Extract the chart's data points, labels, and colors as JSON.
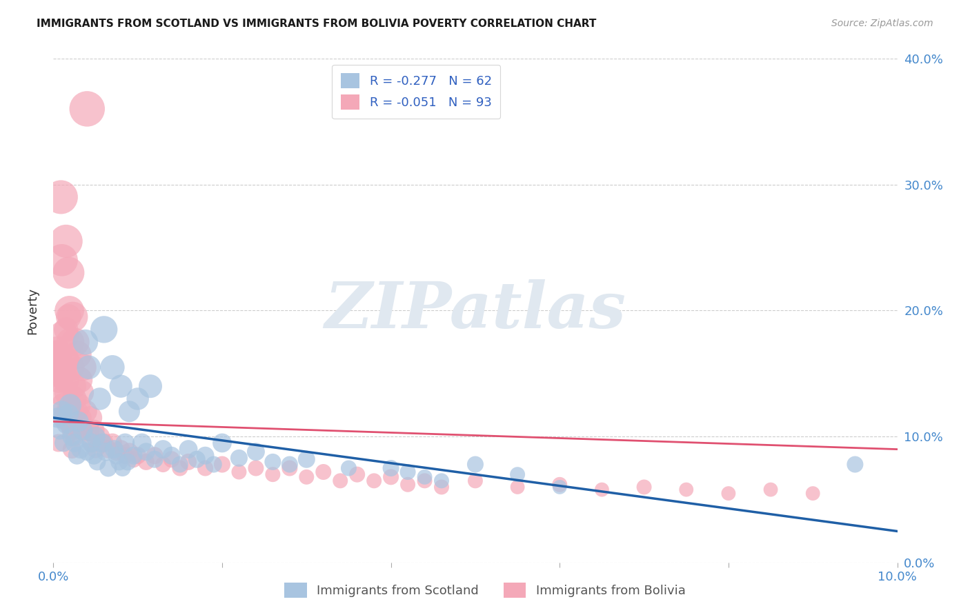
{
  "title": "IMMIGRANTS FROM SCOTLAND VS IMMIGRANTS FROM BOLIVIA POVERTY CORRELATION CHART",
  "source": "Source: ZipAtlas.com",
  "ylabel": "Poverty",
  "scotland_R": -0.277,
  "scotland_N": 62,
  "bolivia_R": -0.051,
  "bolivia_N": 93,
  "xlim": [
    0.0,
    0.1
  ],
  "ylim": [
    0.0,
    0.4
  ],
  "x_ticks": [
    0.0,
    0.02,
    0.04,
    0.06,
    0.08,
    0.1
  ],
  "y_ticks": [
    0.0,
    0.1,
    0.2,
    0.3,
    0.4
  ],
  "scotland_color": "#a8c4e0",
  "bolivia_color": "#f4a8b8",
  "scotland_line_color": "#1f5fa6",
  "bolivia_line_color": "#e05070",
  "legend_text_color": "#3060c0",
  "background_color": "#ffffff",
  "grid_color": "#cccccc",
  "watermark_text": "ZIPatlas",
  "scotland_x": [
    0.0005,
    0.0008,
    0.001,
    0.0012,
    0.0015,
    0.0018,
    0.002,
    0.0022,
    0.0025,
    0.0028,
    0.003,
    0.0032,
    0.0035,
    0.0038,
    0.004,
    0.0042,
    0.0045,
    0.0048,
    0.005,
    0.0052,
    0.0055,
    0.0058,
    0.006,
    0.0062,
    0.0065,
    0.007,
    0.0072,
    0.0075,
    0.0078,
    0.008,
    0.0082,
    0.0085,
    0.0088,
    0.009,
    0.0095,
    0.01,
    0.0105,
    0.011,
    0.0115,
    0.012,
    0.013,
    0.014,
    0.015,
    0.016,
    0.017,
    0.018,
    0.019,
    0.02,
    0.022,
    0.024,
    0.026,
    0.028,
    0.03,
    0.035,
    0.04,
    0.042,
    0.044,
    0.046,
    0.05,
    0.055,
    0.06,
    0.095
  ],
  "scotland_y": [
    0.115,
    0.105,
    0.12,
    0.095,
    0.11,
    0.118,
    0.125,
    0.1,
    0.095,
    0.085,
    0.112,
    0.09,
    0.105,
    0.175,
    0.088,
    0.155,
    0.095,
    0.085,
    0.1,
    0.08,
    0.13,
    0.095,
    0.185,
    0.088,
    0.075,
    0.155,
    0.09,
    0.085,
    0.08,
    0.14,
    0.075,
    0.095,
    0.08,
    0.12,
    0.085,
    0.13,
    0.095,
    0.088,
    0.14,
    0.082,
    0.09,
    0.085,
    0.078,
    0.09,
    0.082,
    0.085,
    0.078,
    0.095,
    0.083,
    0.088,
    0.08,
    0.078,
    0.082,
    0.075,
    0.075,
    0.072,
    0.068,
    0.065,
    0.078,
    0.07,
    0.06,
    0.078
  ],
  "scotland_size": [
    18,
    15,
    20,
    14,
    16,
    18,
    22,
    16,
    15,
    14,
    18,
    15,
    17,
    28,
    14,
    25,
    16,
    14,
    17,
    13,
    22,
    16,
    32,
    15,
    13,
    26,
    15,
    14,
    13,
    23,
    12,
    16,
    13,
    20,
    14,
    22,
    16,
    14,
    24,
    13,
    15,
    14,
    12,
    15,
    13,
    14,
    12,
    16,
    13,
    14,
    12,
    12,
    13,
    11,
    12,
    11,
    10,
    10,
    12,
    10,
    9,
    12
  ],
  "bolivia_x": [
    0.0002,
    0.0003,
    0.0005,
    0.0005,
    0.0006,
    0.0007,
    0.0008,
    0.0008,
    0.0009,
    0.001,
    0.001,
    0.0012,
    0.0012,
    0.0013,
    0.0014,
    0.0015,
    0.0015,
    0.0016,
    0.0017,
    0.0018,
    0.0018,
    0.0019,
    0.002,
    0.002,
    0.0021,
    0.0022,
    0.0023,
    0.0024,
    0.0025,
    0.0026,
    0.0027,
    0.0028,
    0.0029,
    0.003,
    0.0031,
    0.0032,
    0.0033,
    0.0034,
    0.0035,
    0.0038,
    0.004,
    0.0042,
    0.0044,
    0.0046,
    0.0048,
    0.005,
    0.0055,
    0.006,
    0.0065,
    0.007,
    0.0075,
    0.008,
    0.0085,
    0.009,
    0.0095,
    0.01,
    0.011,
    0.012,
    0.013,
    0.014,
    0.015,
    0.016,
    0.018,
    0.02,
    0.022,
    0.024,
    0.026,
    0.028,
    0.03,
    0.032,
    0.034,
    0.036,
    0.038,
    0.04,
    0.042,
    0.044,
    0.046,
    0.05,
    0.055,
    0.06,
    0.065,
    0.07,
    0.075,
    0.08,
    0.085,
    0.09,
    0.0006,
    0.0004,
    0.0025,
    0.0018,
    0.003,
    0.0015,
    0.0022
  ],
  "bolivia_y": [
    0.165,
    0.155,
    0.165,
    0.15,
    0.16,
    0.145,
    0.155,
    0.135,
    0.29,
    0.155,
    0.24,
    0.125,
    0.18,
    0.115,
    0.16,
    0.145,
    0.255,
    0.135,
    0.12,
    0.23,
    0.115,
    0.2,
    0.175,
    0.11,
    0.155,
    0.105,
    0.195,
    0.14,
    0.13,
    0.175,
    0.12,
    0.11,
    0.165,
    0.125,
    0.145,
    0.115,
    0.135,
    0.105,
    0.155,
    0.12,
    0.36,
    0.105,
    0.115,
    0.095,
    0.105,
    0.09,
    0.1,
    0.095,
    0.09,
    0.095,
    0.088,
    0.09,
    0.085,
    0.088,
    0.082,
    0.085,
    0.08,
    0.085,
    0.078,
    0.082,
    0.075,
    0.08,
    0.075,
    0.078,
    0.072,
    0.075,
    0.07,
    0.075,
    0.068,
    0.072,
    0.065,
    0.07,
    0.065,
    0.068,
    0.062,
    0.065,
    0.06,
    0.065,
    0.06,
    0.062,
    0.058,
    0.06,
    0.058,
    0.055,
    0.058,
    0.055,
    0.095,
    0.17,
    0.1,
    0.195,
    0.108,
    0.185,
    0.09
  ],
  "bolivia_size": [
    35,
    30,
    38,
    32,
    36,
    30,
    34,
    28,
    50,
    32,
    45,
    26,
    40,
    24,
    36,
    30,
    48,
    28,
    24,
    44,
    22,
    38,
    35,
    20,
    32,
    18,
    40,
    28,
    26,
    35,
    24,
    20,
    33,
    25,
    30,
    22,
    28,
    18,
    32,
    24,
    55,
    20,
    24,
    16,
    20,
    14,
    18,
    16,
    14,
    16,
    14,
    15,
    13,
    14,
    12,
    13,
    12,
    13,
    11,
    12,
    11,
    12,
    11,
    12,
    10,
    11,
    10,
    11,
    10,
    11,
    10,
    11,
    10,
    11,
    10,
    10,
    10,
    10,
    9,
    10,
    9,
    10,
    9,
    9,
    9,
    9,
    14,
    25,
    16,
    28,
    18,
    26,
    15
  ]
}
